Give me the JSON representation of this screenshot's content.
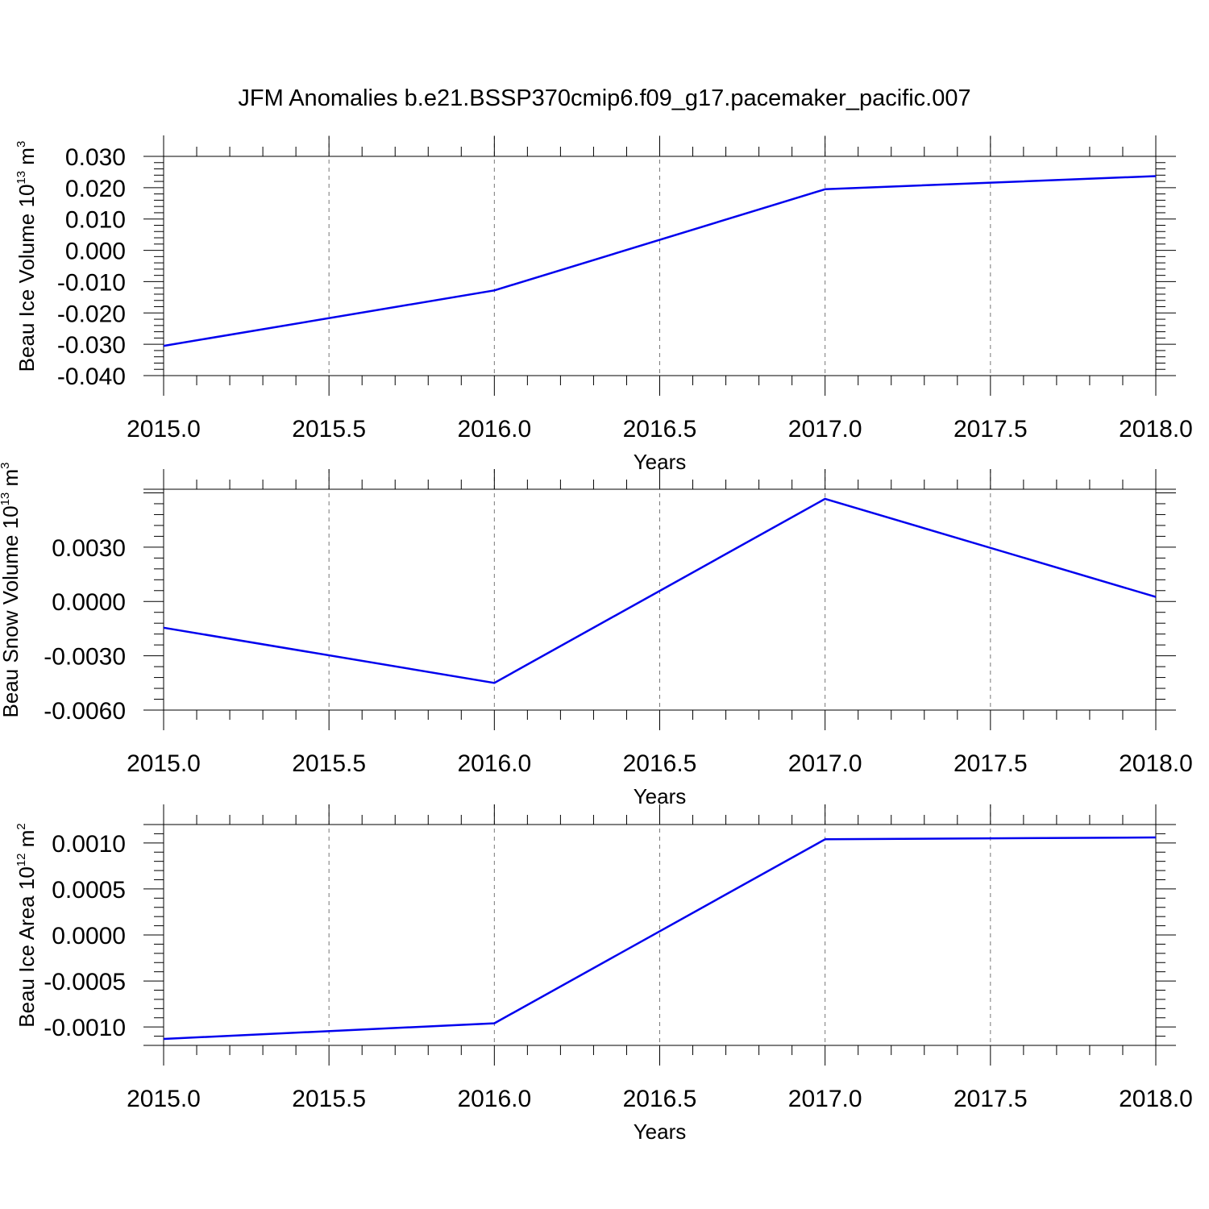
{
  "title": "JFM Anomalies b.e21.BSSP370cmip6.f09_g17.pacemaker_pacific.007",
  "colors": {
    "series": "#0000ee",
    "grid": "#777777",
    "axis": "#000000"
  },
  "chart_data": [
    {
      "type": "line",
      "ylabel": {
        "main": "Beau Ice Volume 10",
        "sup1": "13",
        "unit": " m",
        "sup2": "3"
      },
      "xlabel": "Years",
      "xlim": [
        2015.0,
        2018.0
      ],
      "ylim": [
        -0.04,
        0.03
      ],
      "xticks": [
        "2015.0",
        "2015.5",
        "2016.0",
        "2016.5",
        "2017.0",
        "2017.5",
        "2018.0"
      ],
      "yticks": [
        {
          "value": 0.03,
          "label": "0.030"
        },
        {
          "value": 0.02,
          "label": "0.020"
        },
        {
          "value": 0.01,
          "label": "0.010"
        },
        {
          "value": 0.0,
          "label": "0.000"
        },
        {
          "value": -0.01,
          "label": "-0.010"
        },
        {
          "value": -0.02,
          "label": "-0.020"
        },
        {
          "value": -0.03,
          "label": "-0.030"
        },
        {
          "value": -0.04,
          "label": "-0.040"
        }
      ],
      "x": [
        2015,
        2016,
        2017,
        2018
      ],
      "y": [
        -0.0305,
        -0.0128,
        0.0195,
        0.0237
      ],
      "grid": "x dashed"
    },
    {
      "type": "line",
      "ylabel": {
        "main": "Beau Snow Volume 10",
        "sup1": "13",
        "unit": " m",
        "sup2": "3"
      },
      "xlabel": "Years",
      "xlim": [
        2015.0,
        2018.0
      ],
      "ylim": [
        -0.006,
        0.0062
      ],
      "xticks": [
        "2015.0",
        "2015.5",
        "2016.0",
        "2016.5",
        "2017.0",
        "2017.5",
        "2018.0"
      ],
      "yticks": [
        {
          "value": 0.003,
          "label": "0.0030"
        },
        {
          "value": 0.0,
          "label": "0.0000"
        },
        {
          "value": -0.003,
          "label": "-0.0030"
        },
        {
          "value": -0.006,
          "label": "-0.0060"
        }
      ],
      "x": [
        2015,
        2016,
        2017,
        2018
      ],
      "y": [
        -0.00145,
        -0.0045,
        0.00567,
        0.00025
      ],
      "grid": "x dashed"
    },
    {
      "type": "line",
      "ylabel": {
        "main": "Beau Ice Area 10",
        "sup1": "12",
        "unit": " m",
        "sup2": "2"
      },
      "xlabel": "Years",
      "xlim": [
        2015.0,
        2018.0
      ],
      "ylim": [
        -0.0012,
        0.0012
      ],
      "xticks": [
        "2015.0",
        "2015.5",
        "2016.0",
        "2016.5",
        "2017.0",
        "2017.5",
        "2018.0"
      ],
      "yticks": [
        {
          "value": 0.001,
          "label": "0.0010"
        },
        {
          "value": 0.0005,
          "label": "0.0005"
        },
        {
          "value": 0.0,
          "label": "0.0000"
        },
        {
          "value": -0.0005,
          "label": "-0.0005"
        },
        {
          "value": -0.001,
          "label": "-0.0010"
        }
      ],
      "x": [
        2015,
        2016,
        2017,
        2018
      ],
      "y": [
        -0.00113,
        -0.00096,
        0.00104,
        0.00106
      ],
      "grid": "x dashed"
    }
  ]
}
